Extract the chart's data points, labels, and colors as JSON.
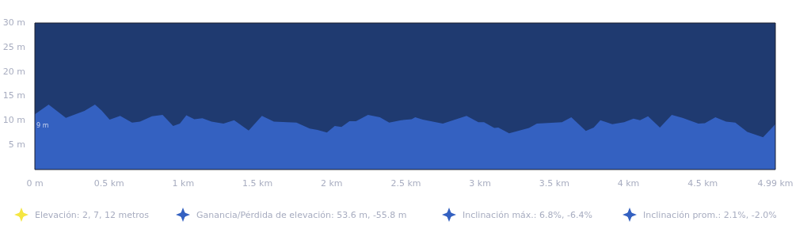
{
  "chart_data": {
    "type": "area",
    "color": "#3461c1",
    "x": [
      0,
      0.093,
      0.209,
      0.334,
      0.405,
      0.45,
      0.504,
      0.575,
      0.655,
      0.709,
      0.789,
      0.861,
      0.932,
      0.977,
      1.021,
      1.075,
      1.129,
      1.191,
      1.271,
      1.343,
      1.441,
      1.53,
      1.611,
      1.763,
      1.852,
      1.905,
      1.968,
      2.021,
      2.066,
      2.12,
      2.164,
      2.245,
      2.325,
      2.388,
      2.468,
      2.539,
      2.563,
      2.615,
      2.749,
      2.909,
      2.989,
      3.027,
      3.096,
      3.123,
      3.196,
      3.33,
      3.383,
      3.552,
      3.615,
      3.713,
      3.766,
      3.811,
      3.891,
      3.971,
      4.034,
      4.078,
      4.132,
      4.212,
      4.292,
      4.364,
      4.471,
      4.515,
      4.586,
      4.658,
      4.72,
      4.801,
      4.907,
      4.99
    ],
    "values": [
      11.3,
      13.3,
      10.6,
      12.0,
      13.3,
      12.1,
      10.2,
      11.0,
      9.6,
      9.8,
      10.9,
      11.2,
      8.9,
      9.4,
      11.1,
      10.3,
      10.5,
      9.8,
      9.4,
      10.1,
      8.0,
      11.0,
      9.8,
      9.6,
      8.4,
      8.1,
      7.6,
      8.9,
      8.7,
      9.9,
      9.9,
      11.2,
      10.7,
      9.6,
      10.1,
      10.3,
      10.7,
      10.2,
      9.4,
      11.0,
      9.7,
      9.7,
      8.5,
      8.6,
      7.4,
      8.5,
      9.4,
      9.7,
      10.7,
      7.9,
      8.6,
      10.1,
      9.3,
      9.7,
      10.4,
      10.1,
      10.9,
      8.6,
      11.2,
      10.6,
      9.4,
      9.5,
      10.7,
      9.8,
      9.6,
      7.7,
      6.6,
      9.3
    ],
    "xlim": [
      0,
      4.99
    ],
    "xticks": [
      {
        "value": 0,
        "label": "0 m"
      },
      {
        "value": 0.5,
        "label": "0.5 km"
      },
      {
        "value": 1,
        "label": "1 km"
      },
      {
        "value": 1.5,
        "label": "1.5 km"
      },
      {
        "value": 2,
        "label": "2 km"
      },
      {
        "value": 2.5,
        "label": "2.5 km"
      },
      {
        "value": 3,
        "label": "3 km"
      },
      {
        "value": 3.5,
        "label": "3.5 km"
      },
      {
        "value": 4,
        "label": "4 km"
      },
      {
        "value": 4.5,
        "label": "4.5 km"
      },
      {
        "value": 4.99,
        "label": "4.99 km"
      }
    ],
    "ylim": [
      0,
      30
    ],
    "yticks": [
      {
        "value": 5,
        "label": "5 m"
      },
      {
        "value": 10,
        "label": "10 m"
      },
      {
        "value": 15,
        "label": "15 m"
      },
      {
        "value": 20,
        "label": "20 m"
      },
      {
        "value": 25,
        "label": "25 m"
      },
      {
        "value": 30,
        "label": "30 m"
      }
    ],
    "annotations": [
      {
        "text": "9 m",
        "x": 0,
        "y": 9
      },
      "Elevación: 2, 7, 12 metros",
      "Ganancia/Pérdida de elevación: 53.6 m, -55.8 m",
      "Inclinación máx.: 6.8%, -6.4%",
      "Inclinación prom.: 2.1%, -2.0%"
    ]
  }
}
